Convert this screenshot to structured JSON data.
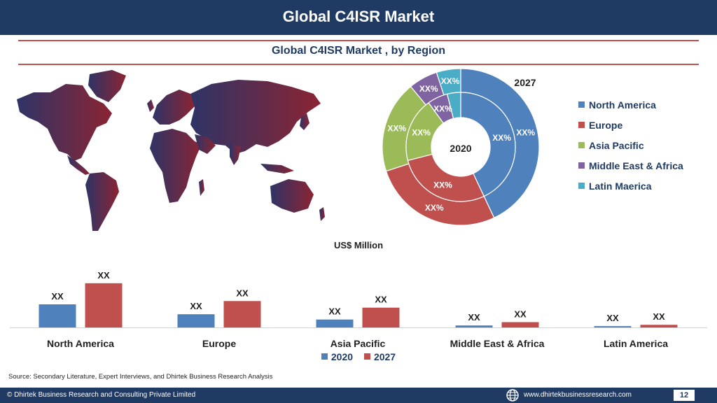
{
  "header": {
    "title": "Global C4ISR Market"
  },
  "section": {
    "title": "Global C4ISR Market , by Region"
  },
  "colors": {
    "header_bg": "#1f3b63",
    "rule": "#c0504d",
    "north_america": "#4f81bd",
    "europe": "#c0504d",
    "asia_pacific": "#9bbb59",
    "middle_east_africa": "#8064a2",
    "latin_america": "#4bacc6",
    "map_west": "#2e3466",
    "map_east": "#8b2433"
  },
  "chart_data": [
    {
      "type": "pie",
      "title": "",
      "outer_ring_label": "2027",
      "inner_ring_label": "2020",
      "legend_position": "right",
      "legend": [
        "North America",
        "Europe",
        "Asia Pacific",
        "Middle East & Africa",
        "Latin Maerica"
      ],
      "rings": [
        {
          "name": "2027",
          "values": [
            43,
            27,
            19,
            6,
            5
          ],
          "labels": [
            "XX%",
            "XX%",
            "XX%",
            "XX%",
            "XX%"
          ]
        },
        {
          "name": "2020",
          "values": [
            43,
            28,
            19,
            6,
            4
          ],
          "labels": [
            "XX%",
            "XX%",
            "XX%",
            "XX%",
            ""
          ]
        }
      ]
    },
    {
      "type": "bar",
      "title": "",
      "ylabel": "US$ Million",
      "ylim": [
        0,
        70
      ],
      "grid": false,
      "legend_position": "bottom",
      "categories": [
        "North America",
        "Europe",
        "Asia Pacific",
        "Middle East & Africa",
        "Latin America"
      ],
      "series": [
        {
          "name": "2020",
          "values": [
            35,
            20,
            12,
            3,
            2
          ],
          "labels": [
            "XX",
            "XX",
            "XX",
            "XX",
            "XX"
          ]
        },
        {
          "name": "2027",
          "values": [
            67,
            40,
            30,
            8,
            4
          ],
          "labels": [
            "XX",
            "XX",
            "XX",
            "XX",
            "XX"
          ]
        }
      ]
    }
  ],
  "icons": {
    "map": "world-map-icon",
    "globe": "globe-icon"
  },
  "footer": {
    "source": "Source: Secondary Literature, Expert Interviews, and Dhirtek Business Research Analysis",
    "copyright": "© Dhirtek Business Research and Consulting Private Limited",
    "website": "www.dhirtekbusinessresearch.com",
    "page": "12"
  }
}
